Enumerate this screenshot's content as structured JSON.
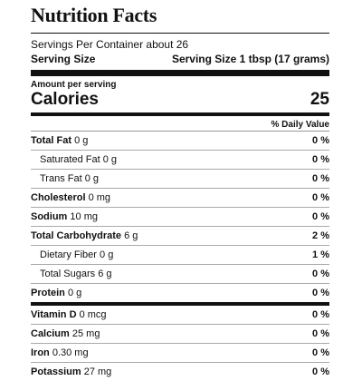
{
  "title": "Nutrition Facts",
  "servings_per_container": "Servings Per Container about 26",
  "serving_size_label": "Serving Size",
  "serving_size_value": "Serving Size 1 tbsp (17 grams)",
  "amount_per_serving": "Amount per serving",
  "calories_label": "Calories",
  "calories_value": "25",
  "daily_value_header": "% Daily Value",
  "nutrients": [
    {
      "name": "Total Fat",
      "amount": "0 g",
      "dv": "0 %"
    },
    {
      "name": "Saturated Fat",
      "amount": "0 g",
      "dv": "0 %"
    },
    {
      "name": "Trans Fat",
      "amount": "0 g",
      "dv": "0 %"
    },
    {
      "name": "Cholesterol",
      "amount": "0 mg",
      "dv": "0 %"
    },
    {
      "name": "Sodium",
      "amount": "10 mg",
      "dv": "0 %"
    },
    {
      "name": "Total Carbohydrate",
      "amount": "6 g",
      "dv": "2 %"
    },
    {
      "name": "Dietary Fiber",
      "amount": "0 g",
      "dv": "1 %"
    },
    {
      "name": "Total Sugars",
      "amount": "6 g",
      "dv": "0 %"
    },
    {
      "name": "Protein",
      "amount": "0 g",
      "dv": "0 %"
    }
  ],
  "vitamins": [
    {
      "name": "Vitamin D",
      "amount": "0 mcg",
      "dv": "0 %"
    },
    {
      "name": "Calcium",
      "amount": "25 mg",
      "dv": "0 %"
    },
    {
      "name": "Iron",
      "amount": "0.30 mg",
      "dv": "0 %"
    },
    {
      "name": "Potassium",
      "amount": "27 mg",
      "dv": "0 %"
    }
  ]
}
